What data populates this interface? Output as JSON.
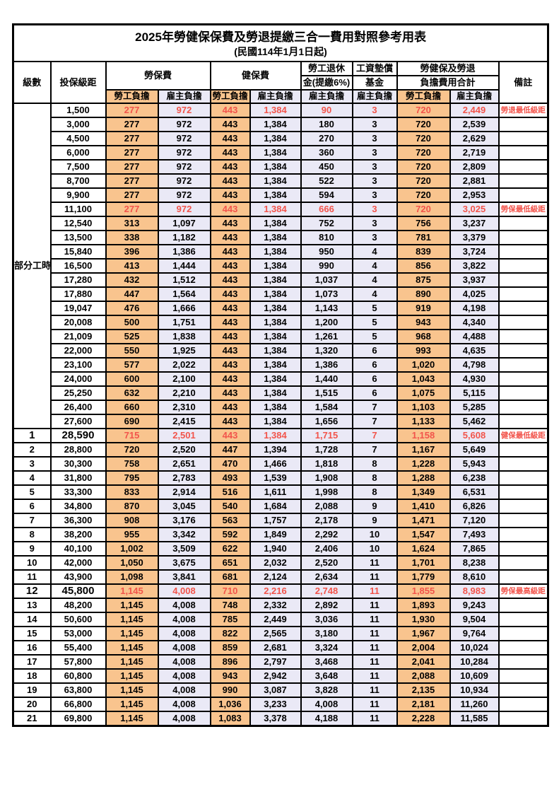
{
  "title": "2025年勞健保保費及勞退提繳三合一費用對照參考用表",
  "subtitle": "(民國114年1月1日起)",
  "columns": {
    "level": "級數",
    "bracket": "投保級距",
    "labor": "勞保費",
    "health": "健保費",
    "pension_l1": "勞工退休",
    "pension_l2": "金(提繳6%)",
    "wage_l1": "工資墊償",
    "wage_l2": "基金",
    "total_l1": "勞健保及勞退",
    "total_l2": "負擔費用合計",
    "employee": "勞工負擔",
    "employer": "雇主負擔",
    "note": "備註"
  },
  "colors": {
    "employee_fill": "#F9C48E",
    "employer_fill": "#EAE9F6",
    "highlight_text": "#F2544B",
    "border": "#000000"
  },
  "part_time_label": "部分工時",
  "part_time_span": 23,
  "rows": [
    {
      "level": "",
      "bracket": "1,500",
      "li_emp": "277",
      "li_er": "972",
      "hi_emp": "443",
      "hi_er": "1,384",
      "pension": "90",
      "wage": "3",
      "tot_emp": "720",
      "tot_er": "2,449",
      "note": "勞退最低級距",
      "red": true,
      "em": false
    },
    {
      "level": "",
      "bracket": "3,000",
      "li_emp": "277",
      "li_er": "972",
      "hi_emp": "443",
      "hi_er": "1,384",
      "pension": "180",
      "wage": "3",
      "tot_emp": "720",
      "tot_er": "2,539",
      "note": "",
      "red": false,
      "em": false
    },
    {
      "level": "",
      "bracket": "4,500",
      "li_emp": "277",
      "li_er": "972",
      "hi_emp": "443",
      "hi_er": "1,384",
      "pension": "270",
      "wage": "3",
      "tot_emp": "720",
      "tot_er": "2,629",
      "note": "",
      "red": false,
      "em": false
    },
    {
      "level": "",
      "bracket": "6,000",
      "li_emp": "277",
      "li_er": "972",
      "hi_emp": "443",
      "hi_er": "1,384",
      "pension": "360",
      "wage": "3",
      "tot_emp": "720",
      "tot_er": "2,719",
      "note": "",
      "red": false,
      "em": false
    },
    {
      "level": "",
      "bracket": "7,500",
      "li_emp": "277",
      "li_er": "972",
      "hi_emp": "443",
      "hi_er": "1,384",
      "pension": "450",
      "wage": "3",
      "tot_emp": "720",
      "tot_er": "2,809",
      "note": "",
      "red": false,
      "em": false
    },
    {
      "level": "",
      "bracket": "8,700",
      "li_emp": "277",
      "li_er": "972",
      "hi_emp": "443",
      "hi_er": "1,384",
      "pension": "522",
      "wage": "3",
      "tot_emp": "720",
      "tot_er": "2,881",
      "note": "",
      "red": false,
      "em": false
    },
    {
      "level": "",
      "bracket": "9,900",
      "li_emp": "277",
      "li_er": "972",
      "hi_emp": "443",
      "hi_er": "1,384",
      "pension": "594",
      "wage": "3",
      "tot_emp": "720",
      "tot_er": "2,953",
      "note": "",
      "red": false,
      "em": false
    },
    {
      "level": "",
      "bracket": "11,100",
      "li_emp": "277",
      "li_er": "972",
      "hi_emp": "443",
      "hi_er": "1,384",
      "pension": "666",
      "wage": "3",
      "tot_emp": "720",
      "tot_er": "3,025",
      "note": "勞保最低級距",
      "red": true,
      "em": false
    },
    {
      "level": "",
      "bracket": "12,540",
      "li_emp": "313",
      "li_er": "1,097",
      "hi_emp": "443",
      "hi_er": "1,384",
      "pension": "752",
      "wage": "3",
      "tot_emp": "756",
      "tot_er": "3,237",
      "note": "",
      "red": false,
      "em": false
    },
    {
      "level": "",
      "bracket": "13,500",
      "li_emp": "338",
      "li_er": "1,182",
      "hi_emp": "443",
      "hi_er": "1,384",
      "pension": "810",
      "wage": "3",
      "tot_emp": "781",
      "tot_er": "3,379",
      "note": "",
      "red": false,
      "em": false
    },
    {
      "level": "",
      "bracket": "15,840",
      "li_emp": "396",
      "li_er": "1,386",
      "hi_emp": "443",
      "hi_er": "1,384",
      "pension": "950",
      "wage": "4",
      "tot_emp": "839",
      "tot_er": "3,724",
      "note": "",
      "red": false,
      "em": false
    },
    {
      "level": "",
      "bracket": "16,500",
      "li_emp": "413",
      "li_er": "1,444",
      "hi_emp": "443",
      "hi_er": "1,384",
      "pension": "990",
      "wage": "4",
      "tot_emp": "856",
      "tot_er": "3,822",
      "note": "",
      "red": false,
      "em": false
    },
    {
      "level": "",
      "bracket": "17,280",
      "li_emp": "432",
      "li_er": "1,512",
      "hi_emp": "443",
      "hi_er": "1,384",
      "pension": "1,037",
      "wage": "4",
      "tot_emp": "875",
      "tot_er": "3,937",
      "note": "",
      "red": false,
      "em": false
    },
    {
      "level": "",
      "bracket": "17,880",
      "li_emp": "447",
      "li_er": "1,564",
      "hi_emp": "443",
      "hi_er": "1,384",
      "pension": "1,073",
      "wage": "4",
      "tot_emp": "890",
      "tot_er": "4,025",
      "note": "",
      "red": false,
      "em": false
    },
    {
      "level": "",
      "bracket": "19,047",
      "li_emp": "476",
      "li_er": "1,666",
      "hi_emp": "443",
      "hi_er": "1,384",
      "pension": "1,143",
      "wage": "5",
      "tot_emp": "919",
      "tot_er": "4,198",
      "note": "",
      "red": false,
      "em": false
    },
    {
      "level": "",
      "bracket": "20,008",
      "li_emp": "500",
      "li_er": "1,751",
      "hi_emp": "443",
      "hi_er": "1,384",
      "pension": "1,200",
      "wage": "5",
      "tot_emp": "943",
      "tot_er": "4,340",
      "note": "",
      "red": false,
      "em": false
    },
    {
      "level": "",
      "bracket": "21,009",
      "li_emp": "525",
      "li_er": "1,838",
      "hi_emp": "443",
      "hi_er": "1,384",
      "pension": "1,261",
      "wage": "5",
      "tot_emp": "968",
      "tot_er": "4,488",
      "note": "",
      "red": false,
      "em": false
    },
    {
      "level": "",
      "bracket": "22,000",
      "li_emp": "550",
      "li_er": "1,925",
      "hi_emp": "443",
      "hi_er": "1,384",
      "pension": "1,320",
      "wage": "6",
      "tot_emp": "993",
      "tot_er": "4,635",
      "note": "",
      "red": false,
      "em": false
    },
    {
      "level": "",
      "bracket": "23,100",
      "li_emp": "577",
      "li_er": "2,022",
      "hi_emp": "443",
      "hi_er": "1,384",
      "pension": "1,386",
      "wage": "6",
      "tot_emp": "1,020",
      "tot_er": "4,798",
      "note": "",
      "red": false,
      "em": false
    },
    {
      "level": "",
      "bracket": "24,000",
      "li_emp": "600",
      "li_er": "2,100",
      "hi_emp": "443",
      "hi_er": "1,384",
      "pension": "1,440",
      "wage": "6",
      "tot_emp": "1,043",
      "tot_er": "4,930",
      "note": "",
      "red": false,
      "em": false
    },
    {
      "level": "",
      "bracket": "25,250",
      "li_emp": "632",
      "li_er": "2,210",
      "hi_emp": "443",
      "hi_er": "1,384",
      "pension": "1,515",
      "wage": "6",
      "tot_emp": "1,075",
      "tot_er": "5,115",
      "note": "",
      "red": false,
      "em": false
    },
    {
      "level": "",
      "bracket": "26,400",
      "li_emp": "660",
      "li_er": "2,310",
      "hi_emp": "443",
      "hi_er": "1,384",
      "pension": "1,584",
      "wage": "7",
      "tot_emp": "1,103",
      "tot_er": "5,285",
      "note": "",
      "red": false,
      "em": false
    },
    {
      "level": "",
      "bracket": "27,600",
      "li_emp": "690",
      "li_er": "2,415",
      "hi_emp": "443",
      "hi_er": "1,384",
      "pension": "1,656",
      "wage": "7",
      "tot_emp": "1,133",
      "tot_er": "5,462",
      "note": "",
      "red": false,
      "em": false
    },
    {
      "level": "1",
      "bracket": "28,590",
      "li_emp": "715",
      "li_er": "2,501",
      "hi_emp": "443",
      "hi_er": "1,384",
      "pension": "1,715",
      "wage": "7",
      "tot_emp": "1,158",
      "tot_er": "5,608",
      "note": "健保最低級距",
      "red": true,
      "em": true
    },
    {
      "level": "2",
      "bracket": "28,800",
      "li_emp": "720",
      "li_er": "2,520",
      "hi_emp": "447",
      "hi_er": "1,394",
      "pension": "1,728",
      "wage": "7",
      "tot_emp": "1,167",
      "tot_er": "5,649",
      "note": "",
      "red": false,
      "em": false
    },
    {
      "level": "3",
      "bracket": "30,300",
      "li_emp": "758",
      "li_er": "2,651",
      "hi_emp": "470",
      "hi_er": "1,466",
      "pension": "1,818",
      "wage": "8",
      "tot_emp": "1,228",
      "tot_er": "5,943",
      "note": "",
      "red": false,
      "em": false
    },
    {
      "level": "4",
      "bracket": "31,800",
      "li_emp": "795",
      "li_er": "2,783",
      "hi_emp": "493",
      "hi_er": "1,539",
      "pension": "1,908",
      "wage": "8",
      "tot_emp": "1,288",
      "tot_er": "6,238",
      "note": "",
      "red": false,
      "em": false
    },
    {
      "level": "5",
      "bracket": "33,300",
      "li_emp": "833",
      "li_er": "2,914",
      "hi_emp": "516",
      "hi_er": "1,611",
      "pension": "1,998",
      "wage": "8",
      "tot_emp": "1,349",
      "tot_er": "6,531",
      "note": "",
      "red": false,
      "em": false
    },
    {
      "level": "6",
      "bracket": "34,800",
      "li_emp": "870",
      "li_er": "3,045",
      "hi_emp": "540",
      "hi_er": "1,684",
      "pension": "2,088",
      "wage": "9",
      "tot_emp": "1,410",
      "tot_er": "6,826",
      "note": "",
      "red": false,
      "em": false
    },
    {
      "level": "7",
      "bracket": "36,300",
      "li_emp": "908",
      "li_er": "3,176",
      "hi_emp": "563",
      "hi_er": "1,757",
      "pension": "2,178",
      "wage": "9",
      "tot_emp": "1,471",
      "tot_er": "7,120",
      "note": "",
      "red": false,
      "em": false
    },
    {
      "level": "8",
      "bracket": "38,200",
      "li_emp": "955",
      "li_er": "3,342",
      "hi_emp": "592",
      "hi_er": "1,849",
      "pension": "2,292",
      "wage": "10",
      "tot_emp": "1,547",
      "tot_er": "7,493",
      "note": "",
      "red": false,
      "em": false
    },
    {
      "level": "9",
      "bracket": "40,100",
      "li_emp": "1,002",
      "li_er": "3,509",
      "hi_emp": "622",
      "hi_er": "1,940",
      "pension": "2,406",
      "wage": "10",
      "tot_emp": "1,624",
      "tot_er": "7,865",
      "note": "",
      "red": false,
      "em": false
    },
    {
      "level": "10",
      "bracket": "42,000",
      "li_emp": "1,050",
      "li_er": "3,675",
      "hi_emp": "651",
      "hi_er": "2,032",
      "pension": "2,520",
      "wage": "11",
      "tot_emp": "1,701",
      "tot_er": "8,238",
      "note": "",
      "red": false,
      "em": false
    },
    {
      "level": "11",
      "bracket": "43,900",
      "li_emp": "1,098",
      "li_er": "3,841",
      "hi_emp": "681",
      "hi_er": "2,124",
      "pension": "2,634",
      "wage": "11",
      "tot_emp": "1,779",
      "tot_er": "8,610",
      "note": "",
      "red": false,
      "em": false
    },
    {
      "level": "12",
      "bracket": "45,800",
      "li_emp": "1,145",
      "li_er": "4,008",
      "hi_emp": "710",
      "hi_er": "2,216",
      "pension": "2,748",
      "wage": "11",
      "tot_emp": "1,855",
      "tot_er": "8,983",
      "note": "勞保最高級距",
      "red": true,
      "em": true
    },
    {
      "level": "13",
      "bracket": "48,200",
      "li_emp": "1,145",
      "li_er": "4,008",
      "hi_emp": "748",
      "hi_er": "2,332",
      "pension": "2,892",
      "wage": "11",
      "tot_emp": "1,893",
      "tot_er": "9,243",
      "note": "",
      "red": false,
      "em": false
    },
    {
      "level": "14",
      "bracket": "50,600",
      "li_emp": "1,145",
      "li_er": "4,008",
      "hi_emp": "785",
      "hi_er": "2,449",
      "pension": "3,036",
      "wage": "11",
      "tot_emp": "1,930",
      "tot_er": "9,504",
      "note": "",
      "red": false,
      "em": false
    },
    {
      "level": "15",
      "bracket": "53,000",
      "li_emp": "1,145",
      "li_er": "4,008",
      "hi_emp": "822",
      "hi_er": "2,565",
      "pension": "3,180",
      "wage": "11",
      "tot_emp": "1,967",
      "tot_er": "9,764",
      "note": "",
      "red": false,
      "em": false
    },
    {
      "level": "16",
      "bracket": "55,400",
      "li_emp": "1,145",
      "li_er": "4,008",
      "hi_emp": "859",
      "hi_er": "2,681",
      "pension": "3,324",
      "wage": "11",
      "tot_emp": "2,004",
      "tot_er": "10,024",
      "note": "",
      "red": false,
      "em": false
    },
    {
      "level": "17",
      "bracket": "57,800",
      "li_emp": "1,145",
      "li_er": "4,008",
      "hi_emp": "896",
      "hi_er": "2,797",
      "pension": "3,468",
      "wage": "11",
      "tot_emp": "2,041",
      "tot_er": "10,284",
      "note": "",
      "red": false,
      "em": false
    },
    {
      "level": "18",
      "bracket": "60,800",
      "li_emp": "1,145",
      "li_er": "4,008",
      "hi_emp": "943",
      "hi_er": "2,942",
      "pension": "3,648",
      "wage": "11",
      "tot_emp": "2,088",
      "tot_er": "10,609",
      "note": "",
      "red": false,
      "em": false
    },
    {
      "level": "19",
      "bracket": "63,800",
      "li_emp": "1,145",
      "li_er": "4,008",
      "hi_emp": "990",
      "hi_er": "3,087",
      "pension": "3,828",
      "wage": "11",
      "tot_emp": "2,135",
      "tot_er": "10,934",
      "note": "",
      "red": false,
      "em": false
    },
    {
      "level": "20",
      "bracket": "66,800",
      "li_emp": "1,145",
      "li_er": "4,008",
      "hi_emp": "1,036",
      "hi_er": "3,233",
      "pension": "4,008",
      "wage": "11",
      "tot_emp": "2,181",
      "tot_er": "11,260",
      "note": "",
      "red": false,
      "em": false
    },
    {
      "level": "21",
      "bracket": "69,800",
      "li_emp": "1,145",
      "li_er": "4,008",
      "hi_emp": "1,083",
      "hi_er": "3,378",
      "pension": "4,188",
      "wage": "11",
      "tot_emp": "2,228",
      "tot_er": "11,585",
      "note": "",
      "red": false,
      "em": false
    }
  ]
}
